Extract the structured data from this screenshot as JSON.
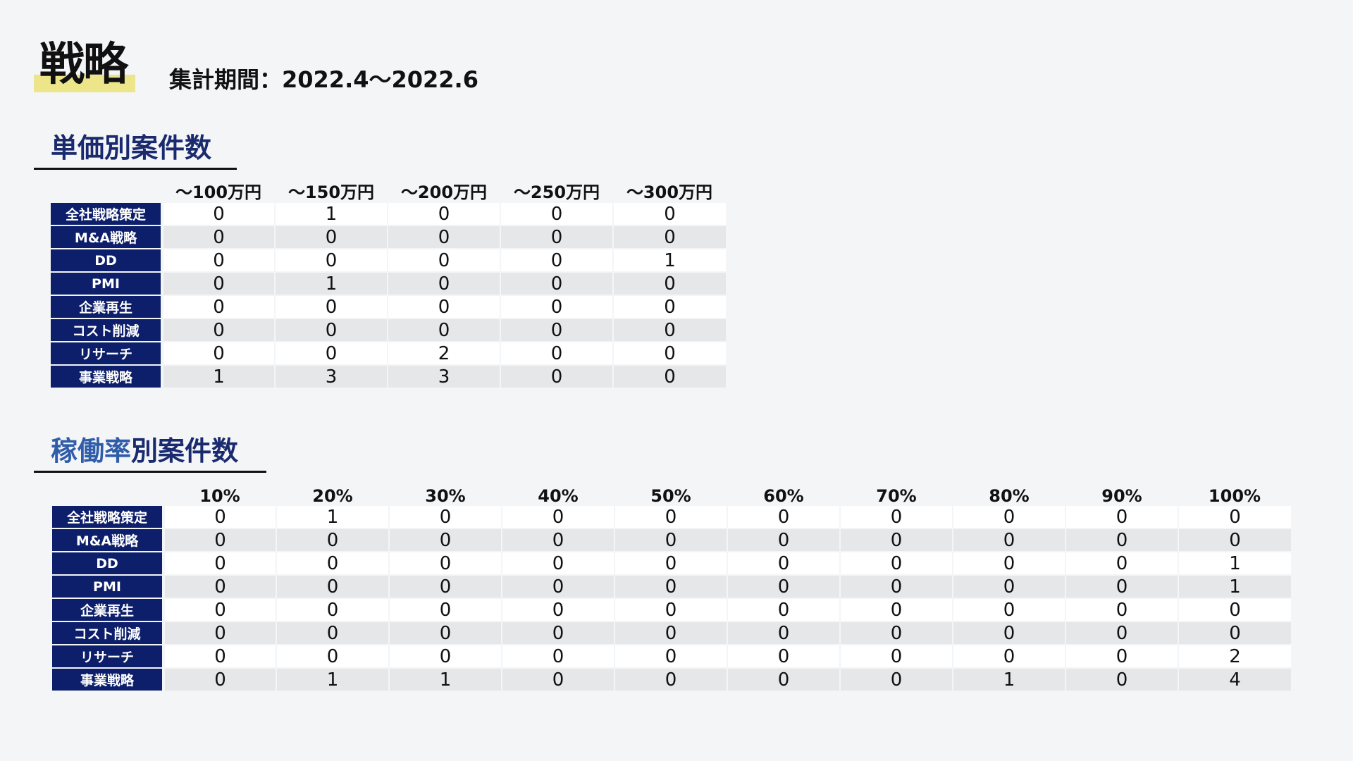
{
  "header": {
    "title": "戦略",
    "period": "集計期間：2022.4〜2022.6"
  },
  "section1": {
    "heading": "単価別案件数",
    "columns": [
      "〜100万円",
      "〜150万円",
      "〜200万円",
      "〜250万円",
      "〜300万円"
    ],
    "rows": [
      {
        "label": "全社戦略策定",
        "values": [
          "0",
          "1",
          "0",
          "0",
          "0"
        ]
      },
      {
        "label": "M&A戦略",
        "values": [
          "0",
          "0",
          "0",
          "0",
          "0"
        ]
      },
      {
        "label": "DD",
        "values": [
          "0",
          "0",
          "0",
          "0",
          "1"
        ]
      },
      {
        "label": "PMI",
        "values": [
          "0",
          "1",
          "0",
          "0",
          "0"
        ]
      },
      {
        "label": "企業再生",
        "values": [
          "0",
          "0",
          "0",
          "0",
          "0"
        ]
      },
      {
        "label": "コスト削減",
        "values": [
          "0",
          "0",
          "0",
          "0",
          "0"
        ]
      },
      {
        "label": "リサーチ",
        "values": [
          "0",
          "0",
          "2",
          "0",
          "0"
        ]
      },
      {
        "label": "事業戦略",
        "values": [
          "1",
          "3",
          "3",
          "0",
          "0"
        ]
      }
    ]
  },
  "section2": {
    "heading_accent": "稼働率",
    "heading_rest": "別案件数",
    "columns": [
      "10%",
      "20%",
      "30%",
      "40%",
      "50%",
      "60%",
      "70%",
      "80%",
      "90%",
      "100%"
    ],
    "rows": [
      {
        "label": "全社戦略策定",
        "values": [
          "0",
          "1",
          "0",
          "0",
          "0",
          "0",
          "0",
          "0",
          "0",
          "0"
        ]
      },
      {
        "label": "M&A戦略",
        "values": [
          "0",
          "0",
          "0",
          "0",
          "0",
          "0",
          "0",
          "0",
          "0",
          "0"
        ]
      },
      {
        "label": "DD",
        "values": [
          "0",
          "0",
          "0",
          "0",
          "0",
          "0",
          "0",
          "0",
          "0",
          "1"
        ]
      },
      {
        "label": "PMI",
        "values": [
          "0",
          "0",
          "0",
          "0",
          "0",
          "0",
          "0",
          "0",
          "0",
          "1"
        ]
      },
      {
        "label": "企業再生",
        "values": [
          "0",
          "0",
          "0",
          "0",
          "0",
          "0",
          "0",
          "0",
          "0",
          "0"
        ]
      },
      {
        "label": "コスト削減",
        "values": [
          "0",
          "0",
          "0",
          "0",
          "0",
          "0",
          "0",
          "0",
          "0",
          "0"
        ]
      },
      {
        "label": "リサーチ",
        "values": [
          "0",
          "0",
          "0",
          "0",
          "0",
          "0",
          "0",
          "0",
          "0",
          "2"
        ]
      },
      {
        "label": "事業戦略",
        "values": [
          "0",
          "1",
          "1",
          "0",
          "0",
          "0",
          "0",
          "1",
          "0",
          "4"
        ]
      }
    ]
  }
}
